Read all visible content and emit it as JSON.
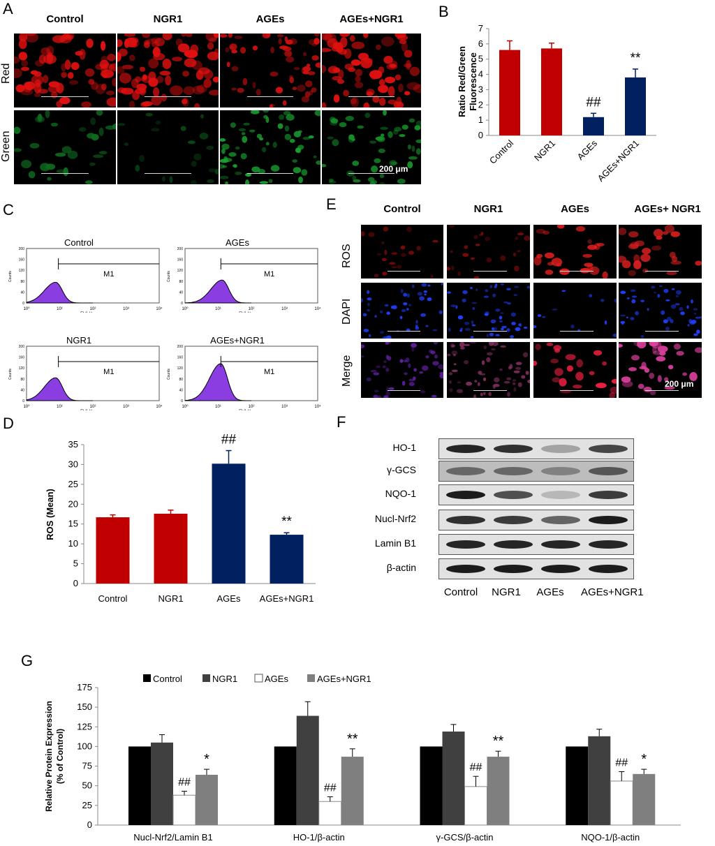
{
  "panels": {
    "A": {
      "letter": "A",
      "columns": [
        "Control",
        "NGR1",
        "AGEs",
        "AGEs+NGR1"
      ],
      "rows": [
        "Red",
        "Green"
      ],
      "scale": "200 μm"
    },
    "C": {
      "letter": "C",
      "plots": [
        {
          "title": "Control",
          "gate": "M1"
        },
        {
          "title": "AGEs",
          "gate": "M1"
        },
        {
          "title": "NGR1",
          "gate": "M1"
        },
        {
          "title": "AGEs+NGR1",
          "gate": "M1"
        }
      ],
      "ylabel": "Counts",
      "xlabel": "FL2-H",
      "yticks": [
        "0",
        "40",
        "80",
        "120",
        "160",
        "200"
      ],
      "xticks": [
        "10⁰",
        "10¹",
        "10²",
        "10³",
        "10⁴"
      ]
    },
    "E": {
      "letter": "E",
      "columns": [
        "Control",
        "NGR1",
        "AGEs",
        "AGEs+ NGR1"
      ],
      "rows": [
        "ROS",
        "DAPI",
        "Merge"
      ],
      "scale": "200 μm"
    },
    "F": {
      "letter": "F",
      "bands": [
        "HO-1",
        "γ-GCS",
        "NQO-1",
        "Nucl-Nrf2",
        "Lamin B1",
        "β-actin"
      ],
      "lanes": [
        "Control",
        "NGR1",
        "AGEs",
        "AGEs+NGR1"
      ]
    }
  },
  "colors": {
    "red": "#c00000",
    "navy": "#002060",
    "black": "#000000",
    "dark": "#404040",
    "white": "#ffffff",
    "grey": "#7f7f7f"
  },
  "chart_data": [
    {
      "id": "B",
      "letter": "B",
      "type": "bar",
      "categories": [
        "Control",
        "NGR1",
        "AGEs",
        "AGEs+NGR1"
      ],
      "values": [
        5.6,
        5.7,
        1.2,
        3.8
      ],
      "errors": [
        0.6,
        0.35,
        0.25,
        0.55
      ],
      "bar_colors": [
        "#c00000",
        "#c00000",
        "#002060",
        "#002060"
      ],
      "annotations": [
        "",
        "",
        "##",
        "**"
      ],
      "ylabel": "Ratio Red/Green Fluorescence",
      "ylim": [
        0,
        7
      ],
      "yticks": [
        0,
        1,
        2,
        3,
        4,
        5,
        6,
        7
      ]
    },
    {
      "id": "D",
      "letter": "D",
      "type": "bar",
      "categories": [
        "Control",
        "NGR1",
        "AGEs",
        "AGEs+NGR1"
      ],
      "values": [
        16.7,
        17.6,
        30.2,
        12.3
      ],
      "errors": [
        0.6,
        0.9,
        3.3,
        0.5
      ],
      "bar_colors": [
        "#c00000",
        "#c00000",
        "#002060",
        "#002060"
      ],
      "annotations": [
        "",
        "",
        "##",
        "**"
      ],
      "ylabel": "ROS (Mean)",
      "ylim": [
        0,
        35
      ],
      "yticks": [
        0,
        5,
        10,
        15,
        20,
        25,
        30,
        35
      ]
    },
    {
      "id": "G",
      "letter": "G",
      "type": "bar",
      "categories": [
        "Nucl-Nrf2/Lamin B1",
        "HO-1/β-actin",
        "γ-GCS/β-actin",
        "NQO-1/β-actin"
      ],
      "series": [
        {
          "name": "Control",
          "color": "#000000",
          "values": [
            100,
            100,
            100,
            100
          ],
          "errors": [
            0,
            0,
            0,
            0
          ]
        },
        {
          "name": "NGR1",
          "color": "#404040",
          "values": [
            105,
            139,
            119,
            113
          ],
          "errors": [
            10,
            18,
            9,
            9
          ]
        },
        {
          "name": "AGEs",
          "color": "#ffffff",
          "values": [
            38,
            30,
            49,
            56
          ],
          "errors": [
            5,
            6,
            13,
            12
          ]
        },
        {
          "name": "AGEs+NGR1",
          "color": "#7f7f7f",
          "values": [
            64,
            87,
            87,
            65
          ],
          "errors": [
            7,
            10,
            7,
            6
          ]
        }
      ],
      "annotations": [
        [
          "",
          "",
          "##",
          "*"
        ],
        [
          "",
          "",
          "##",
          "**"
        ],
        [
          "",
          "",
          "##",
          "**"
        ],
        [
          "",
          "",
          "##",
          "*"
        ]
      ],
      "ylabel": "Relative Protein Expression (% of Control)",
      "ylim": [
        0,
        175
      ],
      "yticks": [
        0,
        25,
        50,
        75,
        100,
        125,
        150,
        175
      ]
    }
  ]
}
